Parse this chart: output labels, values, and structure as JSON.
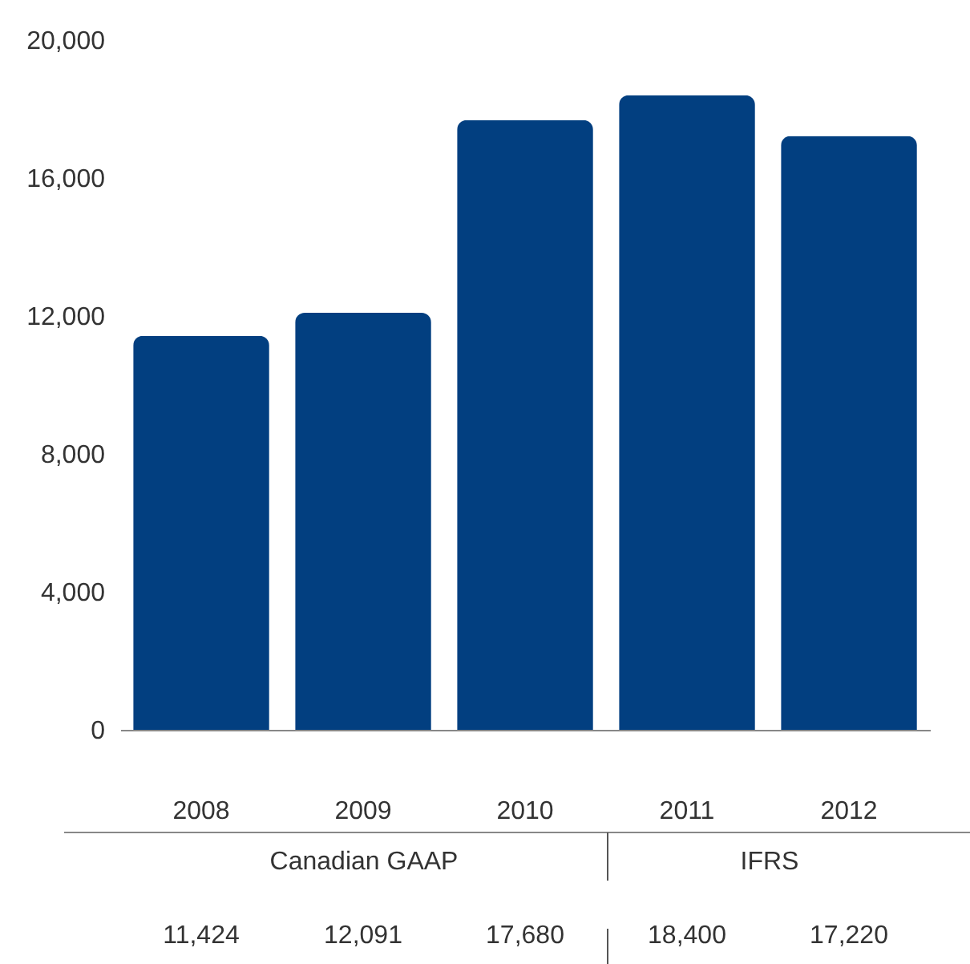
{
  "chart_data": {
    "type": "bar",
    "categories": [
      "2008",
      "2009",
      "2010",
      "2011",
      "2012"
    ],
    "values": [
      11424,
      12091,
      17680,
      18400,
      17220
    ],
    "value_labels": [
      "11,424",
      "12,091",
      "17,680",
      "18,400",
      "17,220"
    ],
    "color": "#023f80",
    "ylim": [
      0,
      20000
    ],
    "yticks": [
      {
        "value": 0,
        "label": "0"
      },
      {
        "value": 4000,
        "label": "4,000"
      },
      {
        "value": 8000,
        "label": "8,000"
      },
      {
        "value": 12000,
        "label": "12,000"
      },
      {
        "value": 16000,
        "label": "16,000"
      },
      {
        "value": 20000,
        "label": "20,000"
      }
    ],
    "annotations": [
      "Canadian GAAP",
      "IFRS"
    ],
    "grid": false
  }
}
